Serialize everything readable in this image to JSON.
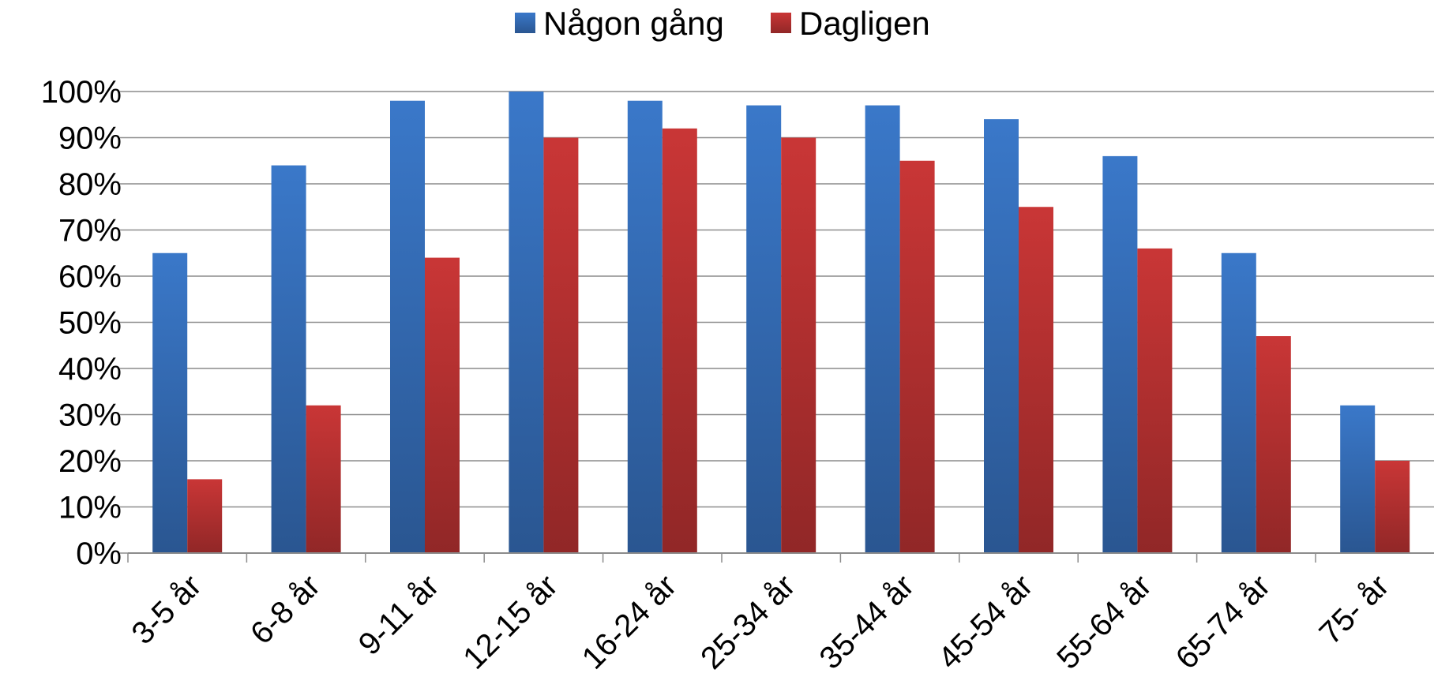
{
  "chart_data": {
    "type": "bar",
    "categories": [
      "3-5 år",
      "6-8 år",
      "9-11 år",
      "12-15 år",
      "16-24 år",
      "25-34 år",
      "35-44 år",
      "45-54 år",
      "55-64 år",
      "65-74 år",
      "75- år"
    ],
    "series": [
      {
        "name": "Någon gång",
        "color": "#3a78c9",
        "values": [
          65,
          84,
          98,
          100,
          98,
          97,
          97,
          94,
          86,
          65,
          32
        ]
      },
      {
        "name": "Dagligen",
        "color": "#c93636",
        "values": [
          16,
          32,
          64,
          90,
          92,
          90,
          85,
          75,
          66,
          47,
          20
        ]
      }
    ],
    "ylim": [
      0,
      100
    ],
    "yticks": [
      "0%",
      "10%",
      "20%",
      "30%",
      "40%",
      "50%",
      "60%",
      "70%",
      "80%",
      "90%",
      "100%"
    ],
    "grid": true,
    "legend_position": "top-center"
  }
}
